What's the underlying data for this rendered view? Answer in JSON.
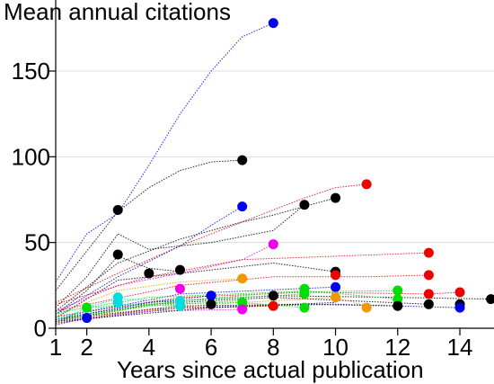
{
  "chart_data": {
    "type": "scatter",
    "title": "Mean annual citations",
    "xlabel": "Years since actual publication",
    "ylabel": "Mean annual citations",
    "xlim": [
      1,
      15
    ],
    "ylim": [
      0,
      180
    ],
    "xticks": [
      1,
      2,
      4,
      6,
      8,
      10,
      12,
      14
    ],
    "yticks": [
      0,
      50,
      100,
      150
    ],
    "grid": "horizontal",
    "legend": "none",
    "trajectories": [
      {
        "color": "#0000ee",
        "points": [
          [
            1,
            27
          ],
          [
            2,
            55
          ],
          [
            3,
            67
          ],
          [
            4,
            95
          ],
          [
            5,
            125
          ],
          [
            6,
            150
          ],
          [
            7,
            170
          ],
          [
            8,
            178
          ]
        ]
      },
      {
        "color": "#000000",
        "points": [
          [
            1,
            22
          ],
          [
            2,
            45
          ],
          [
            3,
            68
          ],
          [
            4,
            82
          ],
          [
            5,
            92
          ],
          [
            6,
            97
          ],
          [
            7,
            98
          ]
        ]
      },
      {
        "color": "#ee0000",
        "points": [
          [
            1,
            15
          ],
          [
            3,
            32
          ],
          [
            5,
            48
          ],
          [
            7,
            62
          ],
          [
            9,
            76
          ],
          [
            10,
            82
          ],
          [
            11,
            84
          ]
        ]
      },
      {
        "color": "#000000",
        "points": [
          [
            1,
            10
          ],
          [
            3,
            38
          ],
          [
            5,
            52
          ],
          [
            7,
            62
          ],
          [
            8,
            66
          ],
          [
            9,
            71
          ],
          [
            10,
            76
          ]
        ]
      },
      {
        "color": "#0000ee",
        "points": [
          [
            1,
            8
          ],
          [
            3,
            30
          ],
          [
            5,
            48
          ],
          [
            6,
            60
          ],
          [
            7,
            71
          ]
        ]
      },
      {
        "color": "#000000",
        "points": [
          [
            1,
            12
          ],
          [
            2,
            30
          ],
          [
            3,
            55
          ],
          [
            4,
            46
          ],
          [
            6,
            50
          ],
          [
            8,
            57
          ],
          [
            9,
            72
          ]
        ]
      },
      {
        "color": "#000000",
        "points": [
          [
            1,
            8
          ],
          [
            2,
            22
          ],
          [
            3,
            42
          ],
          [
            4,
            35
          ],
          [
            5,
            33
          ]
        ]
      },
      {
        "color": "#000000",
        "points": [
          [
            1,
            6
          ],
          [
            3,
            28
          ],
          [
            5,
            32
          ],
          [
            8,
            38
          ],
          [
            10,
            33
          ]
        ]
      },
      {
        "color": "#ee00ee",
        "points": [
          [
            1,
            10
          ],
          [
            3,
            25
          ],
          [
            5,
            32
          ],
          [
            7,
            40
          ],
          [
            8,
            49
          ]
        ]
      },
      {
        "color": "#ee0000",
        "points": [
          [
            1,
            14
          ],
          [
            4,
            30
          ],
          [
            7,
            40
          ],
          [
            10,
            42
          ],
          [
            13,
            44
          ]
        ]
      },
      {
        "color": "#ee0000",
        "points": [
          [
            1,
            10
          ],
          [
            5,
            25
          ],
          [
            8,
            30
          ],
          [
            11,
            30
          ],
          [
            13,
            31
          ]
        ]
      },
      {
        "color": "#ee9900",
        "points": [
          [
            1,
            8
          ],
          [
            3,
            22
          ],
          [
            5,
            27
          ],
          [
            7,
            29
          ]
        ]
      },
      {
        "color": "#ee0000",
        "points": [
          [
            1,
            7
          ],
          [
            5,
            18
          ],
          [
            9,
            21
          ],
          [
            13,
            20
          ],
          [
            14,
            21
          ]
        ]
      },
      {
        "color": "#000000",
        "points": [
          [
            1,
            5
          ],
          [
            4,
            15
          ],
          [
            8,
            19
          ],
          [
            12,
            18
          ],
          [
            15,
            17
          ]
        ]
      },
      {
        "color": "#0000ee",
        "points": [
          [
            1,
            6
          ],
          [
            5,
            20
          ],
          [
            10,
            24
          ]
        ]
      },
      {
        "color": "#00dd00",
        "points": [
          [
            1,
            9
          ],
          [
            4,
            18
          ],
          [
            8,
            21
          ],
          [
            12,
            22
          ]
        ]
      },
      {
        "color": "#00dd00",
        "points": [
          [
            1,
            6
          ],
          [
            5,
            16
          ],
          [
            9,
            22
          ],
          [
            12,
            17
          ]
        ]
      },
      {
        "color": "#000000",
        "points": [
          [
            1,
            4
          ],
          [
            4,
            14
          ],
          [
            8,
            18
          ],
          [
            13,
            14
          ]
        ]
      },
      {
        "color": "#0000ee",
        "points": [
          [
            1,
            3
          ],
          [
            5,
            12
          ],
          [
            10,
            14
          ],
          [
            14,
            12
          ]
        ]
      },
      {
        "color": "#ee9900",
        "points": [
          [
            1,
            5
          ],
          [
            6,
            14
          ],
          [
            10,
            18
          ],
          [
            11,
            13
          ]
        ]
      },
      {
        "color": "#00dddd",
        "points": [
          [
            1,
            6
          ],
          [
            3,
            14
          ],
          [
            5,
            13
          ]
        ]
      },
      {
        "color": "#00dddd",
        "points": [
          [
            1,
            8
          ],
          [
            3,
            17
          ],
          [
            5,
            16
          ]
        ]
      },
      {
        "color": "#ee00ee",
        "points": [
          [
            1,
            4
          ],
          [
            4,
            10
          ],
          [
            7,
            11
          ]
        ]
      },
      {
        "color": "#000000",
        "points": [
          [
            1,
            5
          ],
          [
            5,
            13
          ],
          [
            9,
            14
          ],
          [
            12,
            13
          ]
        ]
      },
      {
        "color": "#00dd00",
        "points": [
          [
            1,
            3
          ],
          [
            2,
            12
          ],
          [
            4,
            14
          ],
          [
            7,
            15
          ],
          [
            9,
            12
          ]
        ]
      },
      {
        "color": "#0000ee",
        "points": [
          [
            1,
            2
          ],
          [
            2,
            6
          ]
        ]
      },
      {
        "color": "#ee0000",
        "points": [
          [
            1,
            3
          ],
          [
            4,
            11
          ],
          [
            8,
            13
          ]
        ]
      },
      {
        "color": "#00dd00",
        "points": [
          [
            1,
            4
          ],
          [
            4,
            13
          ],
          [
            7,
            16
          ]
        ]
      },
      {
        "color": "#00dd00",
        "points": [
          [
            1,
            5
          ],
          [
            5,
            16
          ],
          [
            9,
            20
          ]
        ]
      },
      {
        "color": "#000000",
        "points": [
          [
            1,
            4
          ],
          [
            6,
            12
          ],
          [
            10,
            15
          ]
        ]
      },
      {
        "color": "#0000ee",
        "points": [
          [
            1,
            5
          ],
          [
            4,
            15
          ],
          [
            6,
            19
          ]
        ]
      }
    ],
    "endpoints": [
      {
        "x": 8,
        "y": 178,
        "color": "#0000ee"
      },
      {
        "x": 7,
        "y": 98,
        "color": "#000000"
      },
      {
        "x": 11,
        "y": 84,
        "color": "#ee0000"
      },
      {
        "x": 10,
        "y": 76,
        "color": "#000000"
      },
      {
        "x": 9,
        "y": 72,
        "color": "#000000"
      },
      {
        "x": 7,
        "y": 71,
        "color": "#0000ee"
      },
      {
        "x": 3,
        "y": 69,
        "color": "#000000"
      },
      {
        "x": 8,
        "y": 49,
        "color": "#ee00ee"
      },
      {
        "x": 13,
        "y": 44,
        "color": "#ee0000"
      },
      {
        "x": 3,
        "y": 43,
        "color": "#000000"
      },
      {
        "x": 4,
        "y": 32,
        "color": "#000000"
      },
      {
        "x": 5,
        "y": 34,
        "color": "#000000"
      },
      {
        "x": 10,
        "y": 33,
        "color": "#000000"
      },
      {
        "x": 10,
        "y": 31,
        "color": "#ee0000"
      },
      {
        "x": 13,
        "y": 31,
        "color": "#ee0000"
      },
      {
        "x": 7,
        "y": 29,
        "color": "#ee9900"
      },
      {
        "x": 5,
        "y": 23,
        "color": "#ee00ee"
      },
      {
        "x": 10,
        "y": 24,
        "color": "#0000ee"
      },
      {
        "x": 9,
        "y": 23,
        "color": "#00dd00"
      },
      {
        "x": 12,
        "y": 22,
        "color": "#00dd00"
      },
      {
        "x": 9,
        "y": 20,
        "color": "#00dd00"
      },
      {
        "x": 13,
        "y": 20,
        "color": "#ee0000"
      },
      {
        "x": 14,
        "y": 21,
        "color": "#ee0000"
      },
      {
        "x": 6,
        "y": 19,
        "color": "#0000ee"
      },
      {
        "x": 8,
        "y": 19,
        "color": "#000000"
      },
      {
        "x": 3,
        "y": 18,
        "color": "#00dddd"
      },
      {
        "x": 10,
        "y": 18,
        "color": "#ee9900"
      },
      {
        "x": 12,
        "y": 17,
        "color": "#00dd00"
      },
      {
        "x": 15,
        "y": 17,
        "color": "#000000"
      },
      {
        "x": 3,
        "y": 15,
        "color": "#00dddd"
      },
      {
        "x": 5,
        "y": 16,
        "color": "#00dddd"
      },
      {
        "x": 7,
        "y": 15,
        "color": "#00dd00"
      },
      {
        "x": 6,
        "y": 14,
        "color": "#000000"
      },
      {
        "x": 5,
        "y": 13,
        "color": "#00dddd"
      },
      {
        "x": 7,
        "y": 12,
        "color": "#00dd00"
      },
      {
        "x": 8,
        "y": 13,
        "color": "#ee0000"
      },
      {
        "x": 9,
        "y": 12,
        "color": "#00dd00"
      },
      {
        "x": 11,
        "y": 12,
        "color": "#ee9900"
      },
      {
        "x": 12,
        "y": 13,
        "color": "#000000"
      },
      {
        "x": 13,
        "y": 14,
        "color": "#000000"
      },
      {
        "x": 14,
        "y": 14,
        "color": "#000000"
      },
      {
        "x": 14,
        "y": 12,
        "color": "#0000ee"
      },
      {
        "x": 7,
        "y": 11,
        "color": "#ee00ee"
      },
      {
        "x": 2,
        "y": 12,
        "color": "#00dd00"
      },
      {
        "x": 2,
        "y": 6,
        "color": "#0000ee"
      }
    ]
  }
}
